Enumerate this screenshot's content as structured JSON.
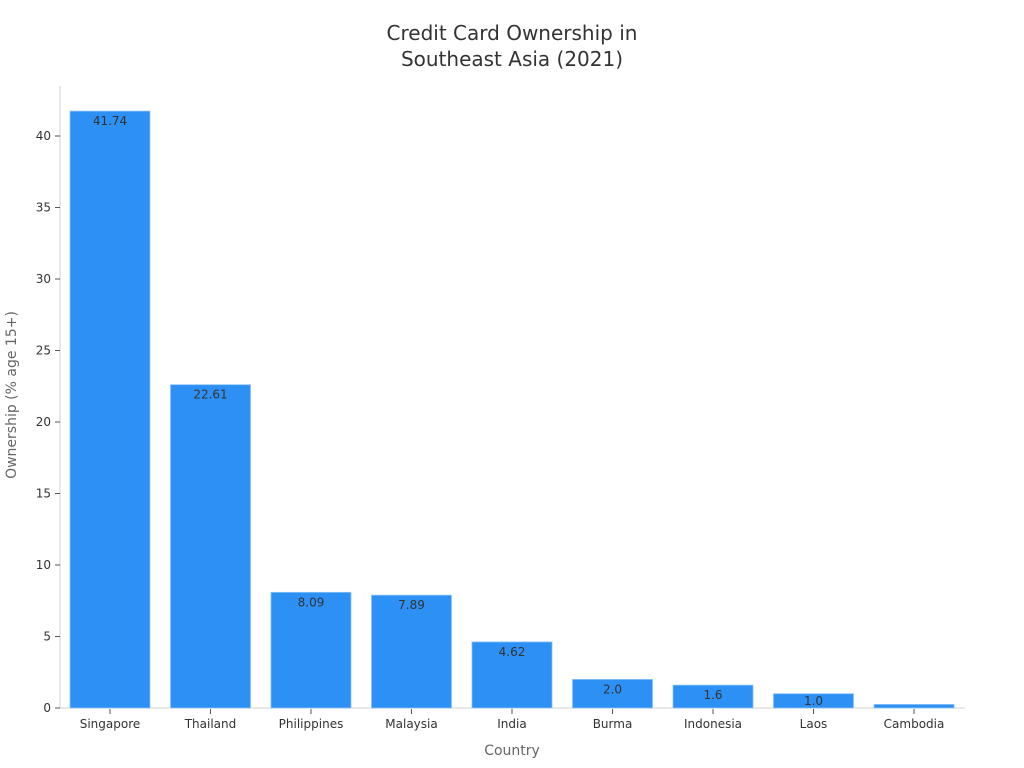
{
  "chart_data": {
    "type": "bar",
    "title": "Credit Card Ownership in\nSoutheast Asia (2021)",
    "title_lines": [
      "Credit Card Ownership in",
      "Southeast Asia (2021)"
    ],
    "xlabel": "Country",
    "ylabel": "Ownership (% age 15+)",
    "categories": [
      "Singapore",
      "Thailand",
      "Philippines",
      "Malaysia",
      "India",
      "Burma",
      "Indonesia",
      "Laos",
      "Cambodia"
    ],
    "values": [
      41.74,
      22.61,
      8.09,
      7.89,
      4.62,
      2.0,
      1.6,
      1.0,
      0.25
    ],
    "data_labels": [
      "41.74",
      "22.61",
      "8.09",
      "7.89",
      "4.62",
      "2.0",
      "1.6",
      "1.0",
      ""
    ],
    "yticks": [
      0,
      5,
      10,
      15,
      20,
      25,
      30,
      35,
      40
    ],
    "ylim": [
      0,
      43.5
    ],
    "grid": false,
    "legend": null,
    "bar_color": "#2d90f5"
  }
}
